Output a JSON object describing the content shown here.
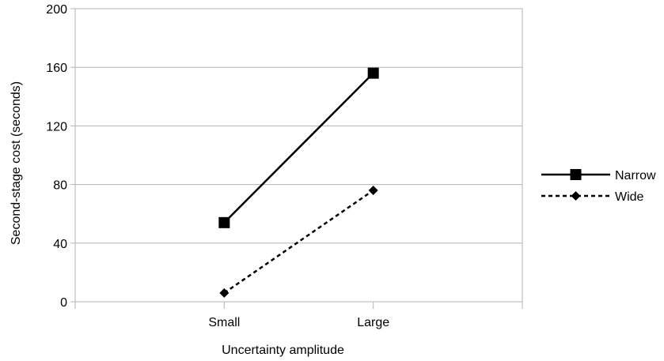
{
  "chart_data": {
    "type": "line",
    "title": "",
    "xlabel": "Uncertainty amplitude",
    "ylabel": "Second-stage cost (seconds)",
    "categories": [
      "Small",
      "Large"
    ],
    "ylim": [
      0,
      200
    ],
    "yticks": [
      0,
      40,
      80,
      120,
      160,
      200
    ],
    "grid": "horizontal",
    "legend_position": "right",
    "series": [
      {
        "name": "Narrow",
        "values": [
          54,
          156
        ],
        "line_style": "solid",
        "marker": "square",
        "color": "#000000"
      },
      {
        "name": "Wide",
        "values": [
          6,
          76
        ],
        "line_style": "dashed",
        "marker": "diamond",
        "color": "#000000"
      }
    ]
  }
}
